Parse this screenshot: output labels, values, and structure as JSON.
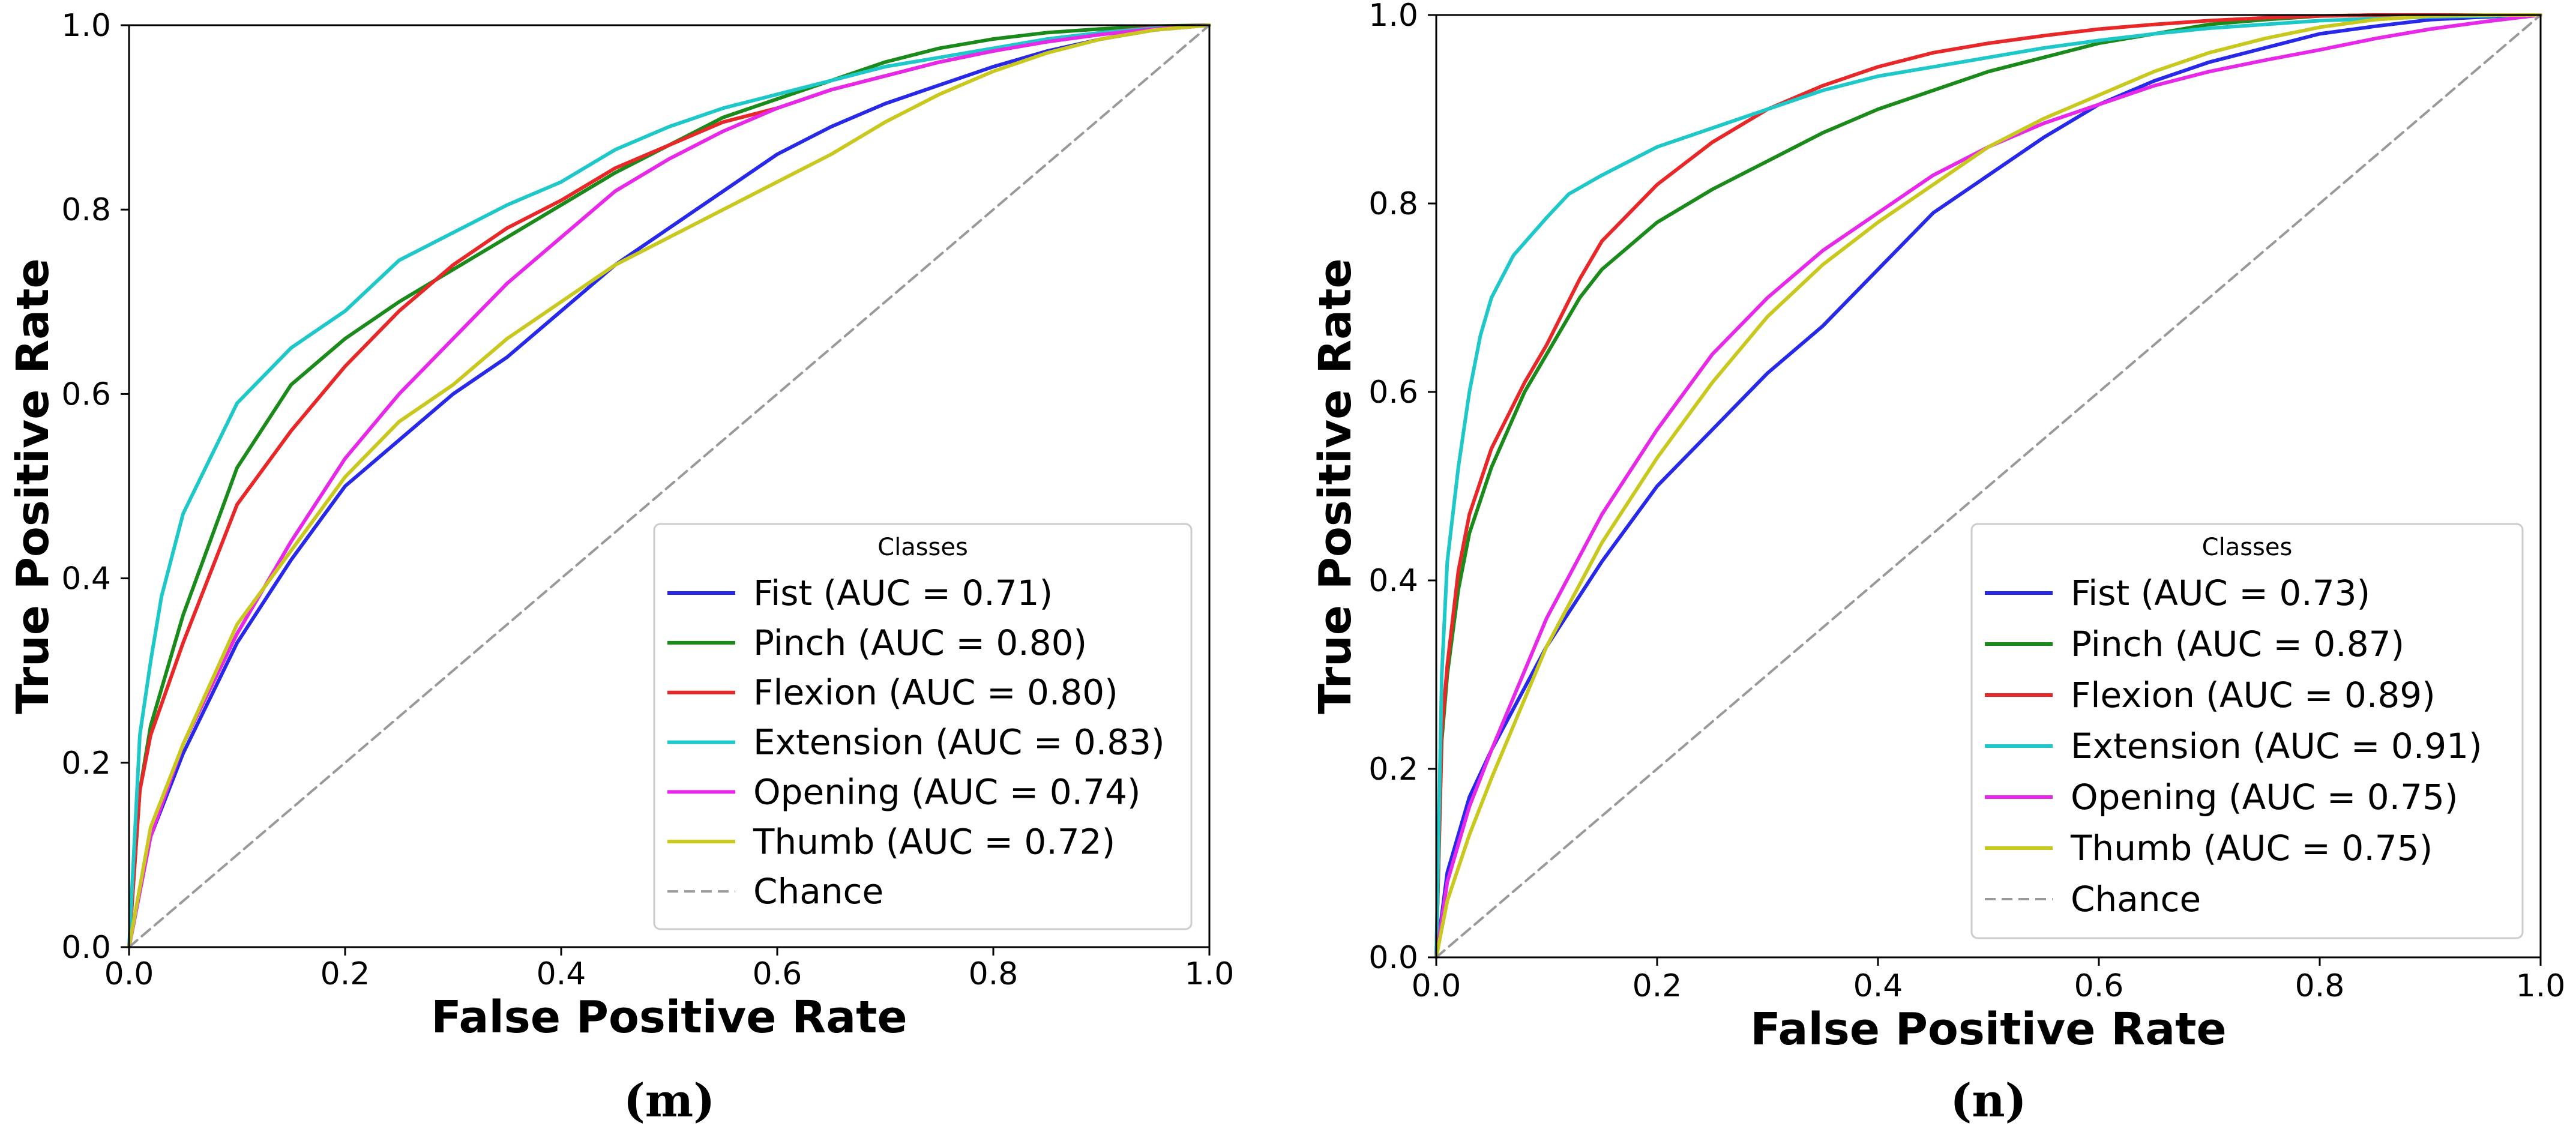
{
  "chart_data": [
    {
      "type": "line",
      "panel_label": "(m)",
      "xlabel": "False Positive Rate",
      "ylabel": "True Positive Rate",
      "xlim": [
        0.0,
        1.0
      ],
      "ylim": [
        0.0,
        1.0
      ],
      "x_ticks": [
        "0.0",
        "0.2",
        "0.4",
        "0.6",
        "0.8",
        "1.0"
      ],
      "y_ticks": [
        "0.0",
        "0.2",
        "0.4",
        "0.6",
        "0.8",
        "1.0"
      ],
      "grid": false,
      "legend": {
        "title": "Classes",
        "position": "lower-right"
      },
      "series": [
        {
          "name": "Fist (AUC = 0.71)",
          "color": "#2828e8",
          "x": [
            0,
            0.02,
            0.05,
            0.1,
            0.15,
            0.2,
            0.25,
            0.3,
            0.35,
            0.4,
            0.45,
            0.5,
            0.55,
            0.6,
            0.65,
            0.7,
            0.75,
            0.8,
            0.85,
            0.9,
            0.95,
            1.0
          ],
          "y": [
            0,
            0.12,
            0.21,
            0.33,
            0.42,
            0.5,
            0.55,
            0.6,
            0.64,
            0.69,
            0.74,
            0.78,
            0.82,
            0.86,
            0.89,
            0.915,
            0.935,
            0.955,
            0.972,
            0.985,
            0.995,
            1.0
          ]
        },
        {
          "name": "Pinch (AUC = 0.80)",
          "color": "#1a8a1a",
          "x": [
            0,
            0.01,
            0.02,
            0.05,
            0.1,
            0.15,
            0.2,
            0.25,
            0.3,
            0.35,
            0.4,
            0.45,
            0.5,
            0.55,
            0.6,
            0.65,
            0.7,
            0.75,
            0.8,
            0.85,
            0.9,
            0.95,
            1.0
          ],
          "y": [
            0,
            0.17,
            0.24,
            0.36,
            0.52,
            0.61,
            0.66,
            0.7,
            0.735,
            0.77,
            0.805,
            0.84,
            0.87,
            0.9,
            0.92,
            0.94,
            0.96,
            0.975,
            0.985,
            0.992,
            0.996,
            0.999,
            1.0
          ]
        },
        {
          "name": "Flexion (AUC = 0.80)",
          "color": "#e82828",
          "x": [
            0,
            0.01,
            0.02,
            0.05,
            0.1,
            0.15,
            0.2,
            0.25,
            0.3,
            0.35,
            0.4,
            0.45,
            0.5,
            0.55,
            0.6,
            0.65,
            0.7,
            0.75,
            0.8,
            0.85,
            0.9,
            0.95,
            1.0
          ],
          "y": [
            0,
            0.17,
            0.23,
            0.33,
            0.48,
            0.56,
            0.63,
            0.69,
            0.74,
            0.78,
            0.81,
            0.845,
            0.87,
            0.895,
            0.91,
            0.93,
            0.945,
            0.96,
            0.972,
            0.983,
            0.992,
            0.998,
            1.0
          ]
        },
        {
          "name": "Extension (AUC = 0.83)",
          "color": "#1ec8c8",
          "x": [
            0,
            0.01,
            0.02,
            0.03,
            0.05,
            0.1,
            0.15,
            0.2,
            0.25,
            0.3,
            0.35,
            0.4,
            0.45,
            0.5,
            0.55,
            0.6,
            0.65,
            0.7,
            0.75,
            0.8,
            0.85,
            0.9,
            0.95,
            1.0
          ],
          "y": [
            0,
            0.23,
            0.31,
            0.38,
            0.47,
            0.59,
            0.65,
            0.69,
            0.745,
            0.775,
            0.805,
            0.83,
            0.865,
            0.89,
            0.91,
            0.925,
            0.94,
            0.955,
            0.965,
            0.975,
            0.985,
            0.992,
            0.997,
            1.0
          ]
        },
        {
          "name": "Opening (AUC = 0.74)",
          "color": "#e828e8",
          "x": [
            0,
            0.02,
            0.05,
            0.1,
            0.15,
            0.2,
            0.25,
            0.3,
            0.35,
            0.4,
            0.45,
            0.5,
            0.55,
            0.6,
            0.65,
            0.7,
            0.75,
            0.8,
            0.85,
            0.9,
            0.95,
            1.0
          ],
          "y": [
            0,
            0.12,
            0.22,
            0.34,
            0.44,
            0.53,
            0.6,
            0.66,
            0.72,
            0.77,
            0.82,
            0.855,
            0.885,
            0.91,
            0.93,
            0.945,
            0.96,
            0.972,
            0.982,
            0.99,
            0.996,
            1.0
          ]
        },
        {
          "name": "Thumb (AUC = 0.72)",
          "color": "#c8c81e",
          "x": [
            0,
            0.02,
            0.05,
            0.1,
            0.15,
            0.2,
            0.25,
            0.3,
            0.35,
            0.4,
            0.45,
            0.5,
            0.55,
            0.6,
            0.65,
            0.7,
            0.75,
            0.8,
            0.85,
            0.9,
            0.95,
            1.0
          ],
          "y": [
            0,
            0.13,
            0.22,
            0.35,
            0.43,
            0.51,
            0.57,
            0.61,
            0.66,
            0.7,
            0.74,
            0.77,
            0.8,
            0.83,
            0.86,
            0.895,
            0.925,
            0.95,
            0.97,
            0.985,
            0.995,
            1.0
          ]
        },
        {
          "name": "Chance",
          "color": "#999999",
          "dashed": true,
          "x": [
            0,
            1.0
          ],
          "y": [
            0,
            1.0
          ]
        }
      ]
    },
    {
      "type": "line",
      "panel_label": "(n)",
      "xlabel": "False Positive Rate",
      "ylabel": "True Positive Rate",
      "xlim": [
        0.0,
        1.0
      ],
      "ylim": [
        0.0,
        1.0
      ],
      "x_ticks": [
        "0.0",
        "0.2",
        "0.4",
        "0.6",
        "0.8",
        "1.0"
      ],
      "y_ticks": [
        "0.0",
        "0.2",
        "0.4",
        "0.6",
        "0.8",
        "1.0"
      ],
      "grid": false,
      "legend": {
        "title": "Classes",
        "position": "lower-right"
      },
      "series": [
        {
          "name": "Fist (AUC = 0.73)",
          "color": "#2828e8",
          "x": [
            0,
            0.01,
            0.03,
            0.05,
            0.1,
            0.15,
            0.2,
            0.25,
            0.3,
            0.35,
            0.4,
            0.45,
            0.5,
            0.55,
            0.6,
            0.65,
            0.7,
            0.75,
            0.8,
            0.85,
            0.9,
            0.95,
            1.0
          ],
          "y": [
            0,
            0.09,
            0.17,
            0.22,
            0.33,
            0.42,
            0.5,
            0.56,
            0.62,
            0.67,
            0.73,
            0.79,
            0.83,
            0.87,
            0.905,
            0.93,
            0.95,
            0.965,
            0.98,
            0.988,
            0.995,
            0.998,
            1.0
          ]
        },
        {
          "name": "Pinch (AUC = 0.87)",
          "color": "#1a8a1a",
          "x": [
            0,
            0.005,
            0.01,
            0.02,
            0.03,
            0.05,
            0.08,
            0.1,
            0.13,
            0.15,
            0.2,
            0.25,
            0.3,
            0.35,
            0.4,
            0.45,
            0.5,
            0.55,
            0.6,
            0.65,
            0.7,
            0.75,
            0.8,
            0.85,
            0.9,
            1.0
          ],
          "y": [
            0,
            0.23,
            0.3,
            0.39,
            0.45,
            0.52,
            0.6,
            0.64,
            0.7,
            0.73,
            0.78,
            0.815,
            0.845,
            0.875,
            0.9,
            0.92,
            0.94,
            0.955,
            0.97,
            0.98,
            0.99,
            0.995,
            0.999,
            1.0,
            1.0,
            1.0
          ]
        },
        {
          "name": "Flexion (AUC = 0.89)",
          "color": "#e82828",
          "x": [
            0,
            0.005,
            0.01,
            0.02,
            0.03,
            0.05,
            0.08,
            0.1,
            0.13,
            0.15,
            0.2,
            0.25,
            0.3,
            0.35,
            0.4,
            0.45,
            0.5,
            0.55,
            0.6,
            0.65,
            0.7,
            0.75,
            0.8,
            0.85,
            0.9,
            1.0
          ],
          "y": [
            0,
            0.24,
            0.31,
            0.41,
            0.47,
            0.54,
            0.61,
            0.65,
            0.72,
            0.76,
            0.82,
            0.865,
            0.9,
            0.925,
            0.945,
            0.96,
            0.97,
            0.978,
            0.985,
            0.99,
            0.994,
            0.997,
            0.999,
            1.0,
            1.0,
            1.0
          ]
        },
        {
          "name": "Extension (AUC = 0.91)",
          "color": "#1ec8c8",
          "x": [
            0,
            0.005,
            0.01,
            0.02,
            0.03,
            0.04,
            0.05,
            0.07,
            0.1,
            0.12,
            0.15,
            0.2,
            0.25,
            0.3,
            0.35,
            0.4,
            0.45,
            0.5,
            0.55,
            0.6,
            0.65,
            0.7,
            0.75,
            0.8,
            0.9,
            1.0
          ],
          "y": [
            0,
            0.3,
            0.42,
            0.52,
            0.6,
            0.66,
            0.7,
            0.745,
            0.785,
            0.81,
            0.83,
            0.86,
            0.88,
            0.9,
            0.92,
            0.935,
            0.945,
            0.955,
            0.965,
            0.973,
            0.98,
            0.986,
            0.99,
            0.994,
            0.998,
            1.0
          ]
        },
        {
          "name": "Opening (AUC = 0.75)",
          "color": "#e828e8",
          "x": [
            0,
            0.01,
            0.03,
            0.05,
            0.1,
            0.15,
            0.2,
            0.25,
            0.3,
            0.35,
            0.4,
            0.45,
            0.5,
            0.55,
            0.6,
            0.65,
            0.7,
            0.75,
            0.8,
            0.85,
            0.9,
            0.95,
            1.0
          ],
          "y": [
            0,
            0.08,
            0.16,
            0.22,
            0.36,
            0.47,
            0.56,
            0.64,
            0.7,
            0.75,
            0.79,
            0.83,
            0.86,
            0.885,
            0.905,
            0.925,
            0.94,
            0.952,
            0.963,
            0.975,
            0.985,
            0.993,
            1.0
          ]
        },
        {
          "name": "Thumb (AUC = 0.75)",
          "color": "#c8c81e",
          "x": [
            0,
            0.01,
            0.03,
            0.05,
            0.1,
            0.15,
            0.2,
            0.25,
            0.3,
            0.35,
            0.4,
            0.45,
            0.5,
            0.55,
            0.6,
            0.65,
            0.7,
            0.75,
            0.8,
            0.85,
            0.9,
            0.95,
            1.0
          ],
          "y": [
            0,
            0.06,
            0.13,
            0.19,
            0.33,
            0.44,
            0.53,
            0.61,
            0.68,
            0.735,
            0.78,
            0.82,
            0.86,
            0.89,
            0.915,
            0.94,
            0.96,
            0.975,
            0.987,
            0.995,
            0.999,
            1.0,
            1.0
          ]
        },
        {
          "name": "Chance",
          "color": "#999999",
          "dashed": true,
          "x": [
            0,
            1.0
          ],
          "y": [
            0,
            1.0
          ]
        }
      ]
    }
  ]
}
